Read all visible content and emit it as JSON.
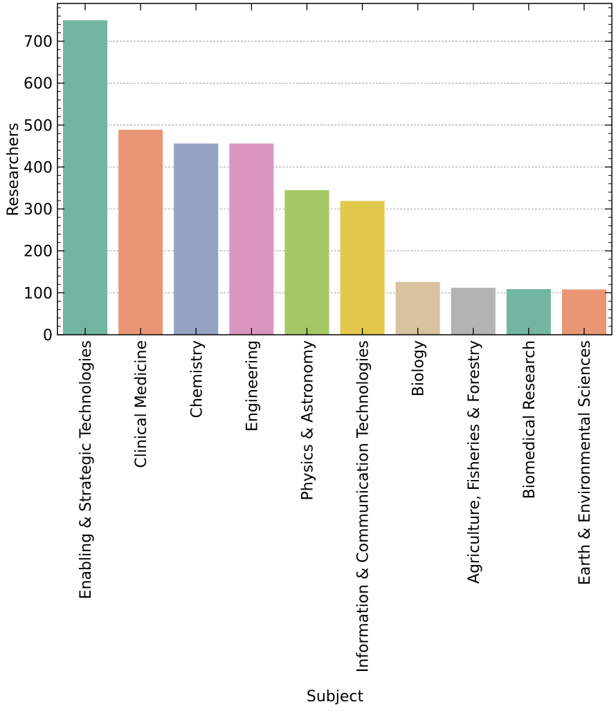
{
  "chart_data": {
    "type": "bar",
    "title": "",
    "xlabel": "Subject",
    "ylabel": "Researchers",
    "categories": [
      "Enabling & Strategic Technologies",
      "Clinical Medicine",
      "Chemistry",
      "Engineering",
      "Physics & Astronomy",
      "Information & Communication Technologies",
      "Biology",
      "Agriculture, Fisheries & Forestry",
      "Biomedical Research",
      "Earth & Environmental Sciences"
    ],
    "values": [
      750,
      489,
      456,
      456,
      345,
      319,
      126,
      112,
      109,
      108
    ],
    "colors": [
      "#72b6a1",
      "#e99675",
      "#95a3c3",
      "#db96c0",
      "#a3c865",
      "#e2c94c",
      "#d9c2a0",
      "#b3b3b3",
      "#72b6a1",
      "#e99675"
    ],
    "ylim": [
      0,
      790
    ],
    "yticks": [
      0,
      100,
      200,
      300,
      400,
      500,
      600,
      700
    ],
    "grid": {
      "y": true,
      "x": false
    },
    "legend": "none"
  }
}
